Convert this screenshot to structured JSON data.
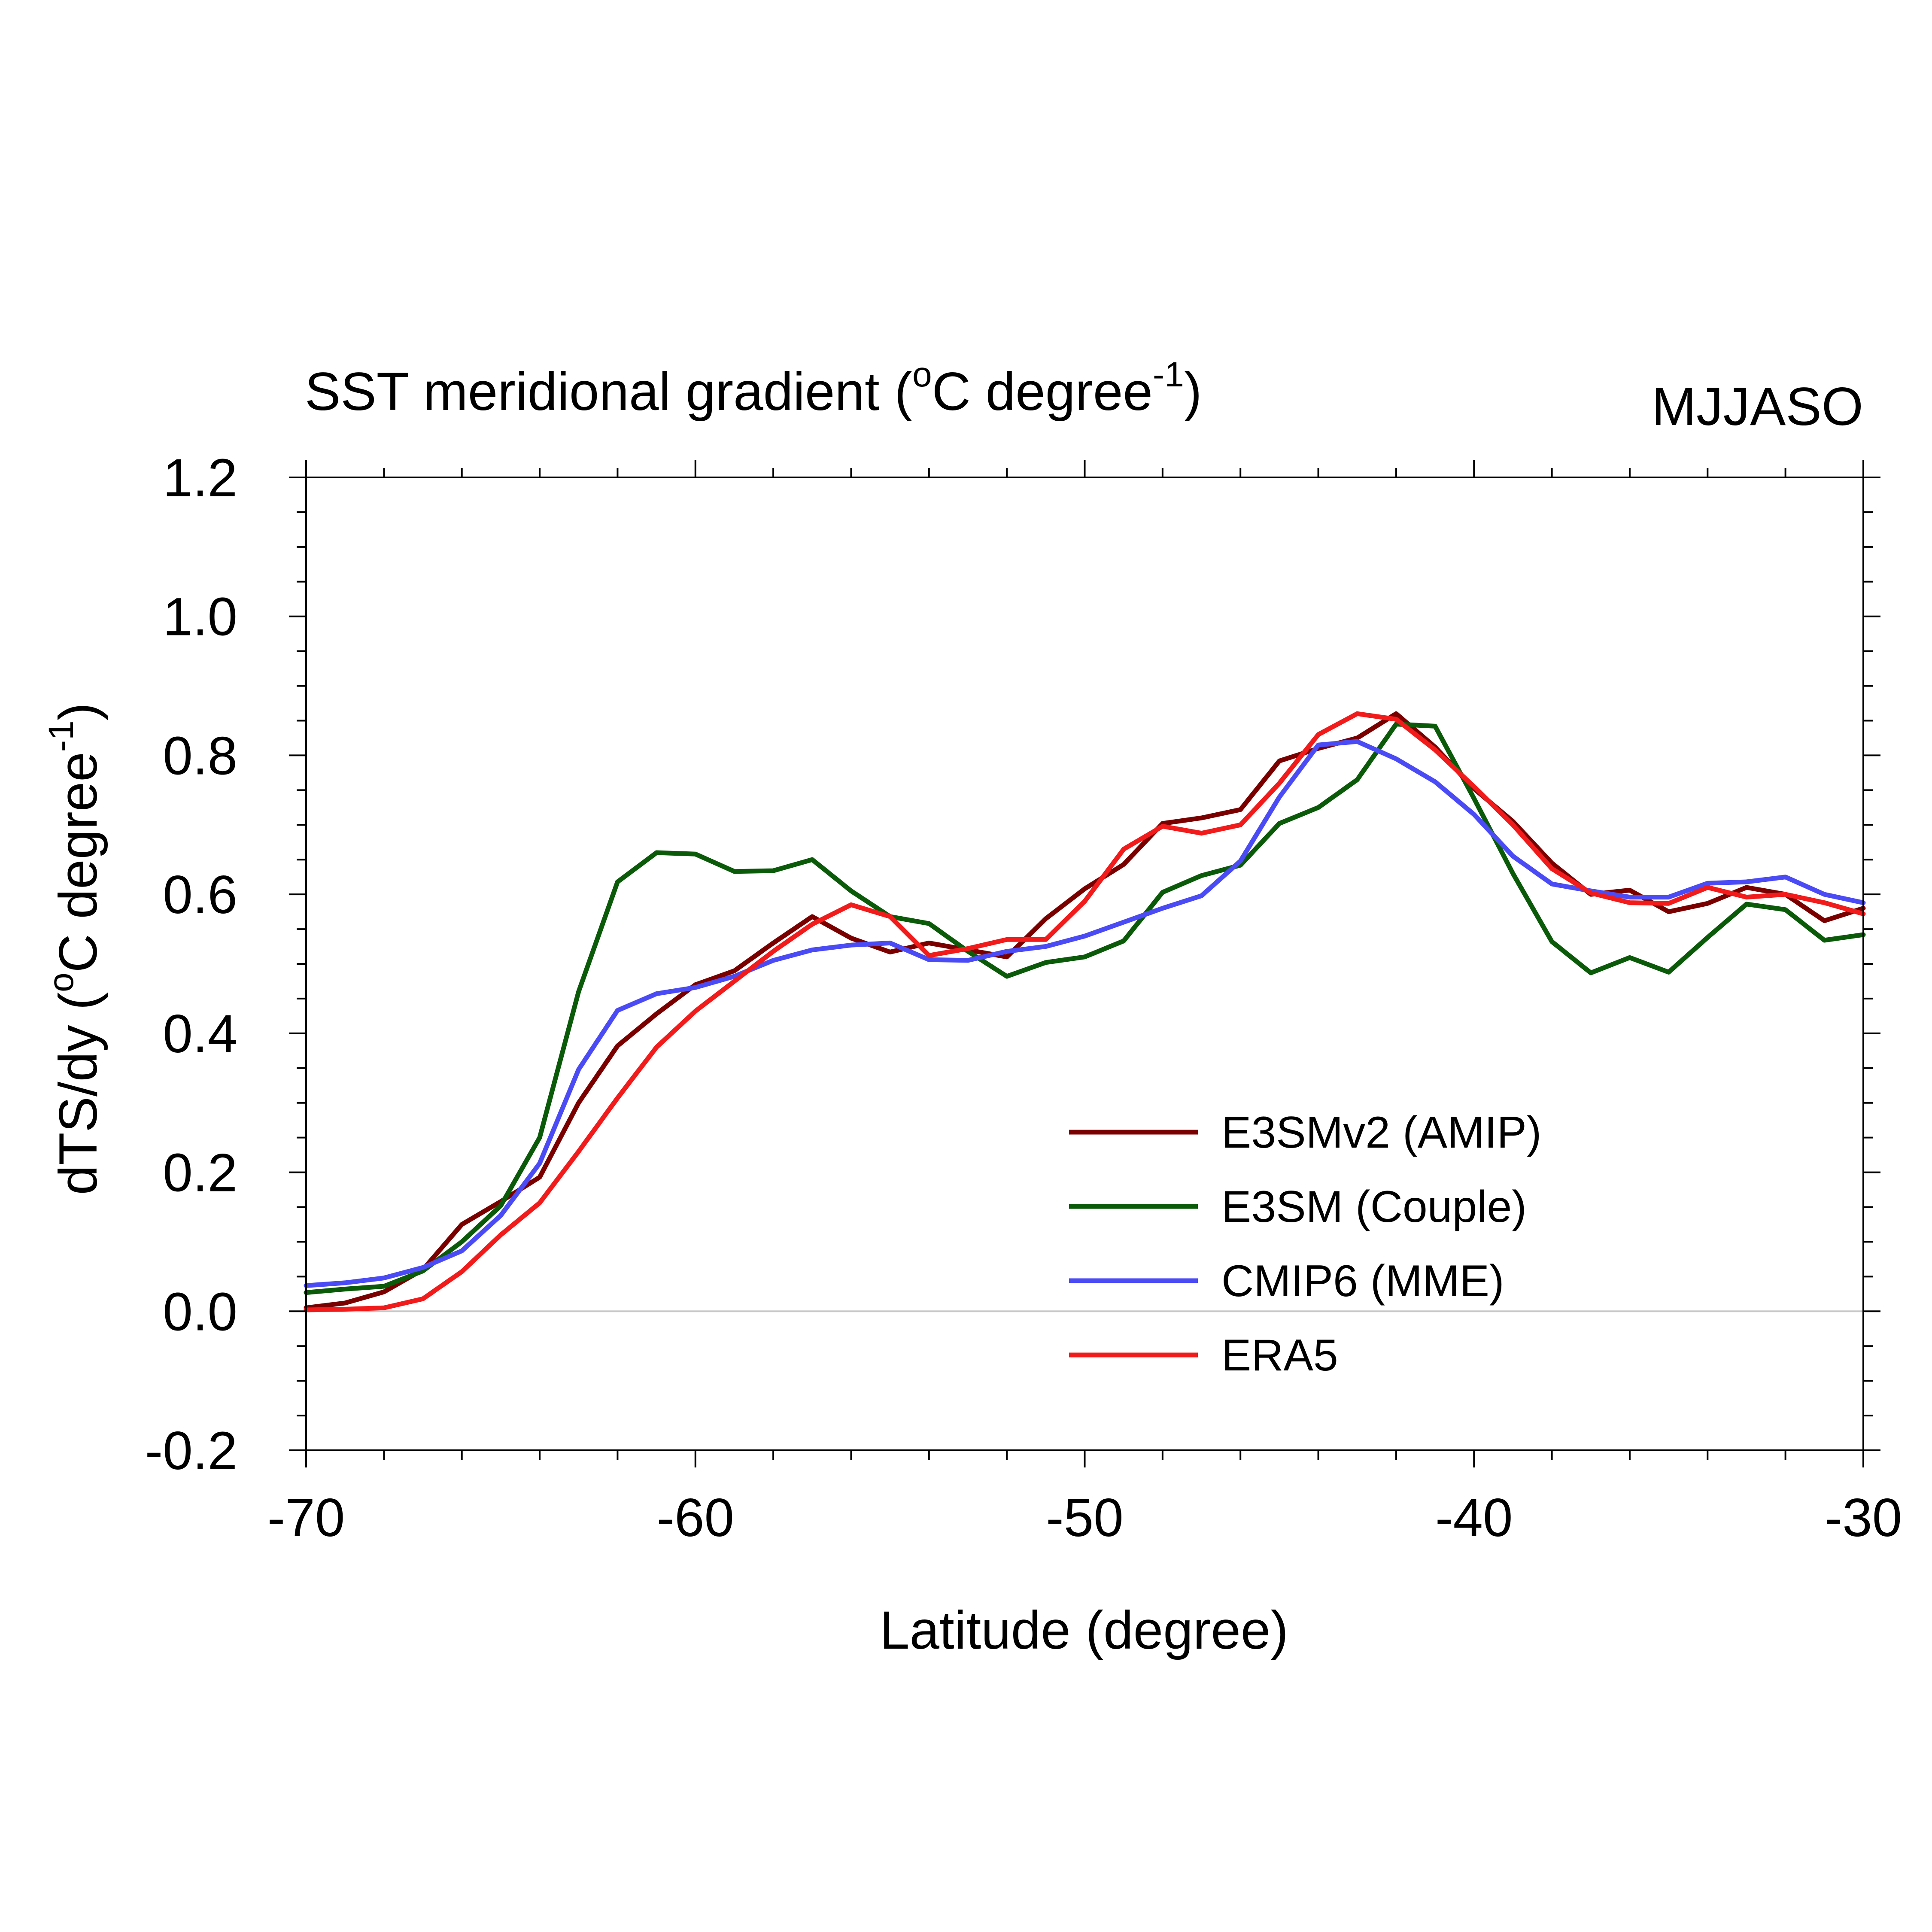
{
  "chart_data": {
    "type": "line",
    "title": "SST meridional gradient (",
    "title_unit": "C degree",
    "title_sup_deg": "o",
    "title_sup_exp": "-1",
    "title_close": ")",
    "season_label": "MJJASO",
    "xlabel": "Latitude (degree)",
    "ylabel_prefix": "dTS/dy (",
    "ylabel_unit": "C degree",
    "ylabel_sup_deg": "o",
    "ylabel_sup_exp": "-1",
    "ylabel_close": ")",
    "xlim": [
      -70,
      -30
    ],
    "ylim": [
      -0.2,
      1.2
    ],
    "xticks": [
      -70,
      -60,
      -50,
      -40,
      -30
    ],
    "xtick_labels": [
      "-70",
      "-60",
      "-50",
      "-40",
      "-30"
    ],
    "yticks": [
      -0.2,
      0.0,
      0.2,
      0.4,
      0.6,
      0.8,
      1.0,
      1.2
    ],
    "ytick_labels": [
      "-0.2",
      "0.0",
      "0.2",
      "0.4",
      "0.6",
      "0.8",
      "1.0",
      "1.2"
    ],
    "zero_line": true,
    "legend_position": "lower-right",
    "x": [
      -70,
      -69,
      -68,
      -67,
      -66,
      -65,
      -64,
      -63,
      -62,
      -61,
      -60,
      -59,
      -58,
      -57,
      -56,
      -55,
      -54,
      -53,
      -52,
      -51,
      -50,
      -49,
      -48,
      -47,
      -46,
      -45,
      -44,
      -43,
      -42,
      -41,
      -40,
      -39,
      -38,
      -37,
      -36,
      -35,
      -34,
      -33,
      -32,
      -31,
      -30
    ],
    "series": [
      {
        "name": "E3SMv2 (AMIP)",
        "color": "#7a0000",
        "values": [
          0.005,
          0.012,
          0.028,
          0.06,
          0.125,
          0.158,
          0.193,
          0.3,
          0.382,
          0.428,
          0.47,
          0.49,
          0.53,
          0.568,
          0.537,
          0.517,
          0.53,
          0.52,
          0.51,
          0.565,
          0.608,
          0.643,
          0.702,
          0.71,
          0.722,
          0.792,
          0.81,
          0.825,
          0.86,
          0.812,
          0.752,
          0.705,
          0.645,
          0.6,
          0.606,
          0.575,
          0.587,
          0.61,
          0.6,
          0.562,
          0.58
        ]
      },
      {
        "name": "E3SM (Couple)",
        "color": "#0a5a0a",
        "values": [
          0.027,
          0.032,
          0.036,
          0.058,
          0.1,
          0.152,
          0.25,
          0.46,
          0.618,
          0.66,
          0.658,
          0.633,
          0.634,
          0.65,
          0.605,
          0.568,
          0.558,
          0.518,
          0.482,
          0.502,
          0.51,
          0.533,
          0.603,
          0.627,
          0.642,
          0.702,
          0.725,
          0.765,
          0.845,
          0.842,
          0.738,
          0.63,
          0.532,
          0.487,
          0.509,
          0.488,
          0.538,
          0.586,
          0.578,
          0.534,
          0.542
        ]
      },
      {
        "name": "CMIP6 (MME)",
        "color": "#4b4bf5",
        "values": [
          0.037,
          0.041,
          0.048,
          0.063,
          0.087,
          0.138,
          0.213,
          0.348,
          0.433,
          0.457,
          0.466,
          0.482,
          0.505,
          0.52,
          0.527,
          0.53,
          0.506,
          0.505,
          0.518,
          0.525,
          0.54,
          0.56,
          0.58,
          0.598,
          0.648,
          0.74,
          0.815,
          0.82,
          0.795,
          0.762,
          0.715,
          0.655,
          0.615,
          0.605,
          0.596,
          0.596,
          0.616,
          0.618,
          0.625,
          0.6,
          0.588
        ]
      },
      {
        "name": "ERA5",
        "color": "#f21b1b",
        "values": [
          0.002,
          0.003,
          0.005,
          0.018,
          0.057,
          0.11,
          0.156,
          0.23,
          0.307,
          0.38,
          0.432,
          0.475,
          0.518,
          0.557,
          0.585,
          0.568,
          0.512,
          0.522,
          0.535,
          0.535,
          0.59,
          0.665,
          0.698,
          0.688,
          0.7,
          0.76,
          0.83,
          0.86,
          0.852,
          0.808,
          0.755,
          0.7,
          0.637,
          0.602,
          0.588,
          0.587,
          0.61,
          0.596,
          0.6,
          0.588,
          0.572
        ]
      }
    ]
  }
}
